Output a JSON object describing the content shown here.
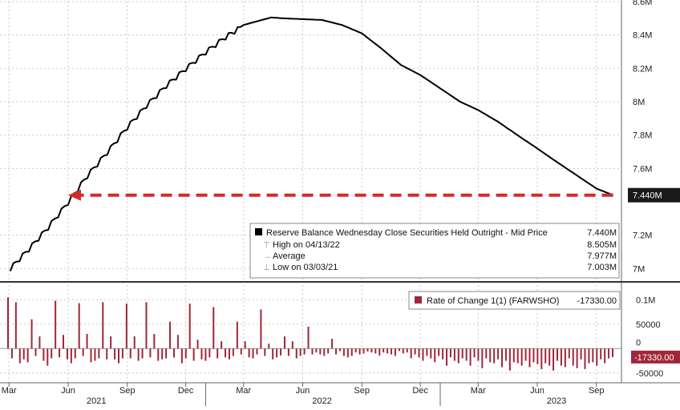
{
  "chart_data": [
    {
      "type": "line",
      "panel": "upper",
      "ylim": [
        6.93,
        8.6
      ],
      "y_ticks": [
        {
          "v": 8.6,
          "label": "8.6M"
        },
        {
          "v": 8.4,
          "label": "8.4M"
        },
        {
          "v": 8.2,
          "label": "8.2M"
        },
        {
          "v": 8.0,
          "label": "8M"
        },
        {
          "v": 7.8,
          "label": "7.8M"
        },
        {
          "v": 7.6,
          "label": "7.6M"
        },
        {
          "v": 7.2,
          "label": "7.2M"
        },
        {
          "v": 7.0,
          "label": "7M"
        }
      ],
      "last_value_label": "7.440M",
      "last_value": 7.44,
      "series": [
        {
          "name": "Reserve Balance Wednesday Close Securities Held Outright - Mid Price",
          "color": "#000000",
          "x": [
            "2021-03-03",
            "2021-04-01",
            "2021-05-01",
            "2021-06-01",
            "2021-07-01",
            "2021-08-01",
            "2021-09-01",
            "2021-10-01",
            "2021-11-01",
            "2021-12-01",
            "2022-01-01",
            "2022-02-01",
            "2022-03-01",
            "2022-04-13",
            "2022-05-01",
            "2022-06-01",
            "2022-07-01",
            "2022-08-01",
            "2022-09-01",
            "2022-10-01",
            "2022-11-01",
            "2022-12-01",
            "2023-01-01",
            "2023-02-01",
            "2023-03-01",
            "2023-04-01",
            "2023-05-01",
            "2023-06-01",
            "2023-07-01",
            "2023-08-01",
            "2023-09-01",
            "2023-09-27"
          ],
          "values": [
            7.003,
            7.12,
            7.25,
            7.4,
            7.56,
            7.7,
            7.85,
            7.98,
            8.1,
            8.2,
            8.3,
            8.39,
            8.46,
            8.505,
            8.5,
            8.495,
            8.49,
            8.46,
            8.41,
            8.32,
            8.22,
            8.16,
            8.08,
            8.0,
            7.95,
            7.88,
            7.8,
            7.72,
            7.64,
            7.56,
            7.48,
            7.44
          ]
        }
      ],
      "reference_arrow": {
        "from": "2023-09-27",
        "to": "2021-06-01",
        "value": 7.44,
        "color": "#d42a2a"
      },
      "legend": {
        "position": "bottom-right",
        "main": {
          "label": "Reserve Balance Wednesday Close Securities Held Outright - Mid Price",
          "value": "7.440M"
        },
        "rows": [
          {
            "label": "High on 04/13/22",
            "value": "8.505M"
          },
          {
            "label": "Average",
            "value": "7.977M"
          },
          {
            "label": "Low on 03/03/21",
            "value": "7.003M"
          }
        ]
      }
    },
    {
      "type": "bar",
      "panel": "lower",
      "ylim": [
        -70000,
        130000
      ],
      "y_ticks": [
        {
          "v": 100000,
          "label": "0.1M"
        },
        {
          "v": 50000,
          "label": "50000"
        },
        {
          "v": 0,
          "label": "0"
        },
        {
          "v": -50000,
          "label": "-50000"
        }
      ],
      "last_value_label": "-17330.00",
      "last_value": -17330,
      "series": [
        {
          "name": "Rate of Change 1(1) (FARWSHO)",
          "color": "#a0263a",
          "values": [
            105000,
            -20000,
            95000,
            -30000,
            -22000,
            -28000,
            60000,
            -15000,
            25000,
            -25000,
            -35000,
            -20000,
            98000,
            -18000,
            28000,
            -22000,
            -30000,
            -20000,
            93000,
            -15000,
            30000,
            -28000,
            -25000,
            -20000,
            95000,
            -22000,
            25000,
            -22000,
            -30000,
            -20000,
            92000,
            -20000,
            25000,
            -25000,
            -20000,
            95000,
            -18000,
            30000,
            -25000,
            -22000,
            -20000,
            55000,
            -18000,
            28000,
            -30000,
            -20000,
            92000,
            -25000,
            18000,
            -22000,
            -25000,
            -18000,
            85000,
            -20000,
            15000,
            -18000,
            -22000,
            -15000,
            55000,
            -12000,
            15000,
            -18000,
            -20000,
            -12000,
            80000,
            -15000,
            10000,
            -22000,
            -18000,
            -14000,
            25000,
            -15000,
            15000,
            -20000,
            -15000,
            -12000,
            45000,
            -12000,
            -8000,
            -12000,
            -15000,
            -10000,
            20000,
            -12000,
            -5000,
            -15000,
            -18000,
            -15000,
            -8000,
            -12000,
            -10000,
            -6000,
            -8000,
            -10000,
            -14000,
            -8000,
            -10000,
            -12000,
            -15000,
            -5000,
            -10000,
            -8000,
            -20000,
            -12000,
            -18000,
            -25000,
            -15000,
            -20000,
            -28000,
            -15000,
            -22000,
            -35000,
            -18000,
            -25000,
            -30000,
            -20000,
            -25000,
            -35000,
            -18000,
            -25000,
            -40000,
            -20000,
            -28000,
            -30000,
            -22000,
            -38000,
            -25000,
            -45000,
            -28000,
            -30000,
            -35000,
            -25000,
            -38000,
            -28000,
            -32000,
            -42000,
            -30000,
            -35000,
            -45000,
            -25000,
            -35000,
            -38000,
            -20000,
            -35000,
            -40000,
            -22000,
            -42000,
            -30000,
            -28000,
            -35000,
            -22000,
            -30000,
            -20000,
            -17330
          ],
          "tick_positive_value": 130000
        }
      ],
      "legend": {
        "position": "top-right",
        "label": "Rate of Change 1(1) (FARWSHO)",
        "value": "-17330.00"
      }
    }
  ],
  "x_axis": {
    "months": [
      "Mar",
      "Jun",
      "Sep",
      "Dec",
      "Mar",
      "Jun",
      "Sep",
      "Dec",
      "Mar",
      "Jun",
      "Sep"
    ],
    "month_dates": [
      "2021-03-01",
      "2021-06-01",
      "2021-09-01",
      "2021-12-01",
      "2022-03-01",
      "2022-06-01",
      "2022-09-01",
      "2022-12-01",
      "2023-03-01",
      "2023-06-01",
      "2023-09-01"
    ],
    "years": [
      "2021",
      "2022",
      "2023"
    ],
    "year_dates": [
      "2021-07-15",
      "2022-07-01",
      "2023-07-01"
    ],
    "range": [
      "2021-02-15",
      "2023-10-10"
    ]
  },
  "colors": {
    "line": "#000000",
    "arrow": "#d42a2a",
    "bars": "#a0263a",
    "grid": "#c8c8c8",
    "label_bg": "#1a1a1a"
  }
}
